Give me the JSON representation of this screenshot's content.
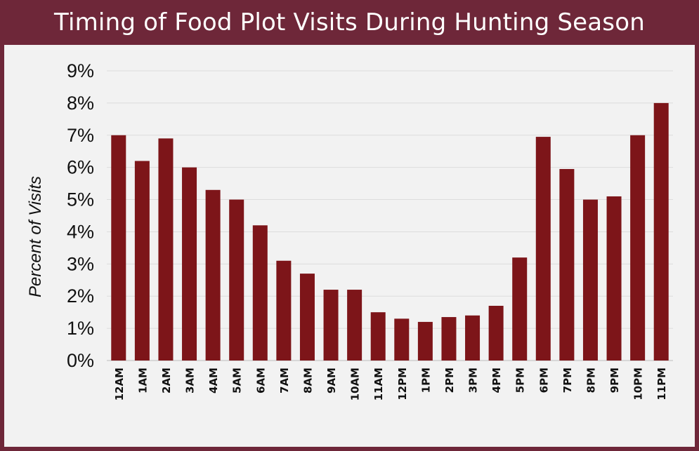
{
  "chart_data": {
    "type": "bar",
    "title": "Timing of Food Plot Visits During Hunting Season",
    "xlabel": "",
    "ylabel": "Percent of Visits",
    "ylim": [
      0,
      9
    ],
    "yticks": [
      "0%",
      "1%",
      "2%",
      "3%",
      "4%",
      "5%",
      "6%",
      "7%",
      "8%",
      "9%"
    ],
    "grid": true,
    "categories": [
      "12AM",
      "1AM",
      "2AM",
      "3AM",
      "4AM",
      "5AM",
      "6AM",
      "7AM",
      "8AM",
      "9AM",
      "10AM",
      "11AM",
      "12PM",
      "1PM",
      "2PM",
      "3PM",
      "4PM",
      "5PM",
      "6PM",
      "7PM",
      "8PM",
      "9PM",
      "10PM",
      "11PM"
    ],
    "values": [
      7.0,
      6.2,
      6.9,
      6.0,
      5.3,
      5.0,
      4.2,
      3.1,
      2.7,
      2.2,
      2.2,
      1.5,
      1.3,
      1.2,
      1.35,
      1.4,
      1.7,
      3.2,
      6.95,
      5.95,
      5.0,
      5.1,
      7.0,
      8.0
    ],
    "bar_color": "#7d1519",
    "frame_color": "#6e2739",
    "background_color": "#f2f2f2"
  }
}
